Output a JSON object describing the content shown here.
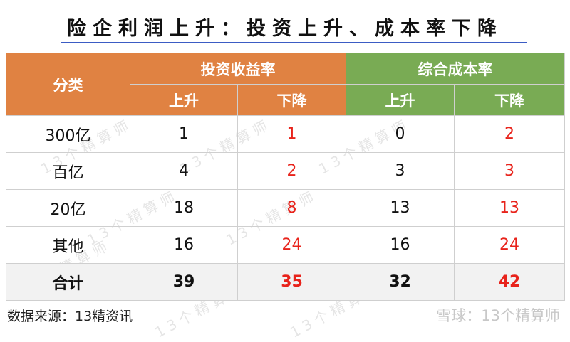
{
  "title": "险企利润上升：投资上升、成本率下降",
  "watermark": "13个精算师",
  "colors": {
    "investment_header": "#e08242",
    "cost_header": "#79ab54",
    "decrease_text": "#e8231b",
    "title_underline": "#3b5cc4"
  },
  "chart_data": {
    "type": "table",
    "header": {
      "category": "分类",
      "groups": [
        "投资收益率",
        "综合成本率"
      ],
      "subcolumns": [
        "上升",
        "下降",
        "上升",
        "下降"
      ]
    },
    "rows": [
      {
        "label": "300亿",
        "values": [
          1,
          1,
          0,
          2
        ]
      },
      {
        "label": "百亿",
        "values": [
          4,
          2,
          3,
          3
        ]
      },
      {
        "label": "20亿",
        "values": [
          18,
          8,
          13,
          13
        ]
      },
      {
        "label": "其他",
        "values": [
          16,
          24,
          16,
          24
        ]
      },
      {
        "label": "合计",
        "values": [
          39,
          35,
          32,
          42
        ]
      }
    ]
  },
  "footer": {
    "source": "数据来源：13精资讯",
    "brand": "雪球：13个精算师"
  }
}
